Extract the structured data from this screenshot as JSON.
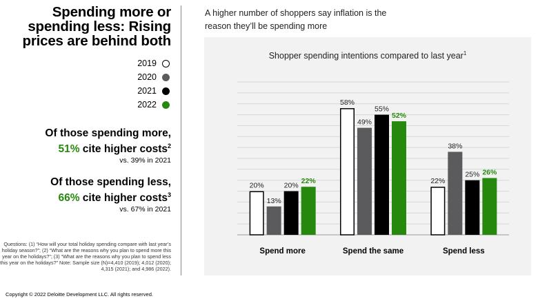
{
  "headline": "Spending more or spending less: Rising prices are behind both",
  "legend": [
    {
      "label": "2019",
      "color": "#ffffff",
      "border": "#000000"
    },
    {
      "label": "2020",
      "color": "#5b5b5e",
      "border": "#5b5b5e"
    },
    {
      "label": "2021",
      "color": "#000000",
      "border": "#000000"
    },
    {
      "label": "2022",
      "color": "#26890d",
      "border": "#26890d"
    }
  ],
  "stat_more": {
    "line1": "Of those spending more,",
    "highlight": "51%",
    "rest": " cite higher costs",
    "sup": "2",
    "vs": "vs. 39% in 2021"
  },
  "stat_less": {
    "line1": "Of those spending less,",
    "highlight": "66%",
    "rest": " cite higher costs",
    "sup": "3",
    "vs": "vs. 67% in 2021"
  },
  "footnote": "Questions: (1) “How will your total holiday spending compare with last year’s holiday season?”; (2) “What are the reasons why you plan to spend more this year on the holidays?”; (3) “What are the reasons why you plan to spend less this year on the holidays?” Note: Sample size (N)=4,410 (2019); 4,012 (2020); 4,315 (2021); and 4,986 (2022).",
  "copyright": "Copyright © 2022 Deloitte Development LLC. All rights reserved.",
  "subtitle": "A higher number of shoppers say inflation is the reason they’ll be spending more",
  "highlight_color": "#26890d",
  "chart_data": {
    "type": "bar",
    "title": "Shopper spending intentions compared to last year",
    "title_sup": "1",
    "categories": [
      "Spend more",
      "Spend the same",
      "Spend less"
    ],
    "series": [
      {
        "name": "2019",
        "values": [
          20,
          58,
          22
        ],
        "color": "#ffffff",
        "stroke": "#000000"
      },
      {
        "name": "2020",
        "values": [
          13,
          49,
          38
        ],
        "color": "#5b5b5e",
        "stroke": "#5b5b5e"
      },
      {
        "name": "2021",
        "values": [
          20,
          55,
          25
        ],
        "color": "#000000",
        "stroke": "#000000"
      },
      {
        "name": "2022",
        "values": [
          22,
          52,
          26
        ],
        "color": "#26890d",
        "stroke": "#26890d"
      }
    ],
    "value_suffix": "%",
    "ylim": [
      0,
      70
    ],
    "grid": true,
    "legend_position": "left"
  }
}
